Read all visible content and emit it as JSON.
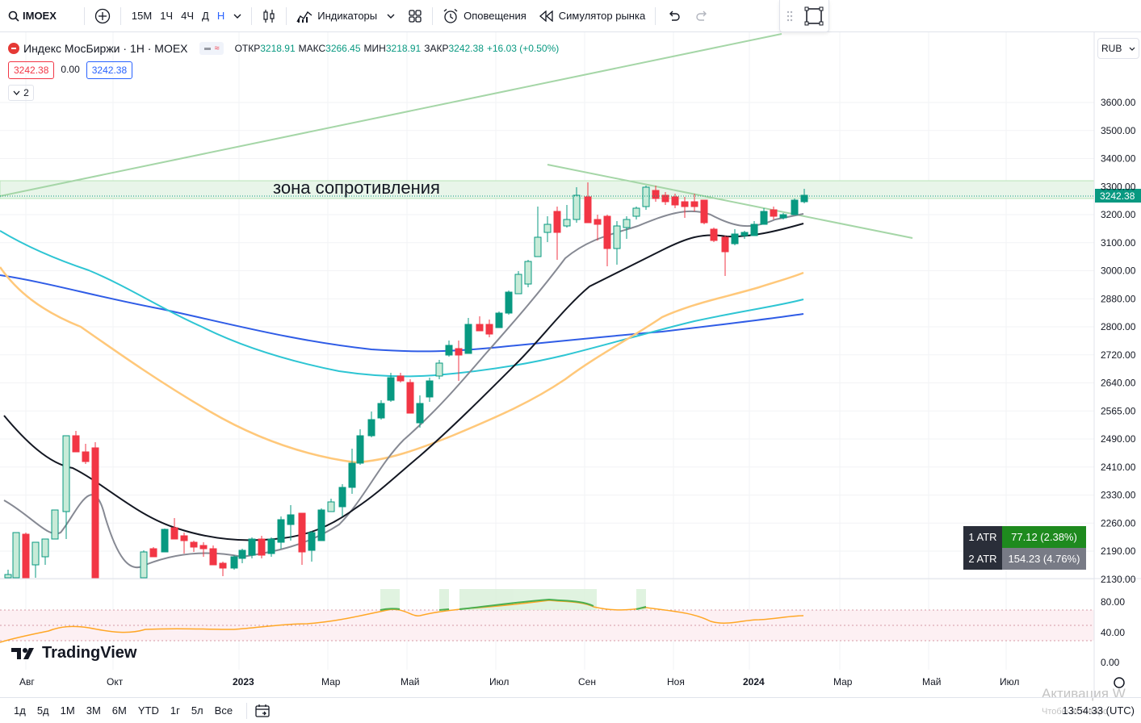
{
  "toolbar": {
    "symbol": "IMOEX",
    "timeframes": [
      "15М",
      "1Ч",
      "4Ч",
      "Д",
      "Н"
    ],
    "active_timeframe": "Н",
    "indicators_label": "Индикаторы",
    "alerts_label": "Оповещения",
    "replay_label": "Симулятор рынка"
  },
  "legend": {
    "title": "Индекс МосБиржи · 1Н · MOEX",
    "open_label": "ОТКР",
    "open": "3218.91",
    "high_label": "МАКС",
    "high": "3266.45",
    "low_label": "МИН",
    "low": "3218.91",
    "close_label": "ЗАКР",
    "close": "3242.38",
    "change": "+16.03 (+0.50%)",
    "sell_price": "3242.38",
    "spread": "0.00",
    "buy_price": "3242.38",
    "collapsed_count": "2",
    "currency": "RUB"
  },
  "chart_data": {
    "type": "candlestick",
    "annotation": "зона сопротивления",
    "last_price": "3242.38",
    "price_ticks": [
      "3600.00",
      "3500.00",
      "3400.00",
      "3300.00",
      "3200.00",
      "3100.00",
      "3000.00",
      "2880.00",
      "2800.00",
      "2720.00",
      "2640.00",
      "2565.00",
      "2490.00",
      "2410.00",
      "2330.00",
      "2260.00",
      "2190.00",
      "2130.00"
    ],
    "time_ticks": [
      "Авг",
      "Окт",
      "2023",
      "Мар",
      "Май",
      "Июл",
      "Сен",
      "Ноя",
      "2024",
      "Мар",
      "Май",
      "Июл"
    ],
    "rsi_ticks": [
      "80.00",
      "40.00",
      "0.00"
    ],
    "atr": [
      {
        "label": "1 ATR",
        "value": "77.12 (2.38%)"
      },
      {
        "label": "2 ATR",
        "value": "154.23 (4.76%)"
      }
    ],
    "colors": {
      "up": "#089981",
      "down": "#f23645",
      "zone": "#b7e4b7"
    }
  },
  "bottom": {
    "ranges": [
      "1д",
      "5д",
      "1М",
      "3М",
      "6М",
      "YTD",
      "1г",
      "5л",
      "Все"
    ],
    "clock": "13:54:33 (UTC)",
    "watermark": "Активация W",
    "watermark2": "Чтобы активиро"
  },
  "brand": "TradingView"
}
